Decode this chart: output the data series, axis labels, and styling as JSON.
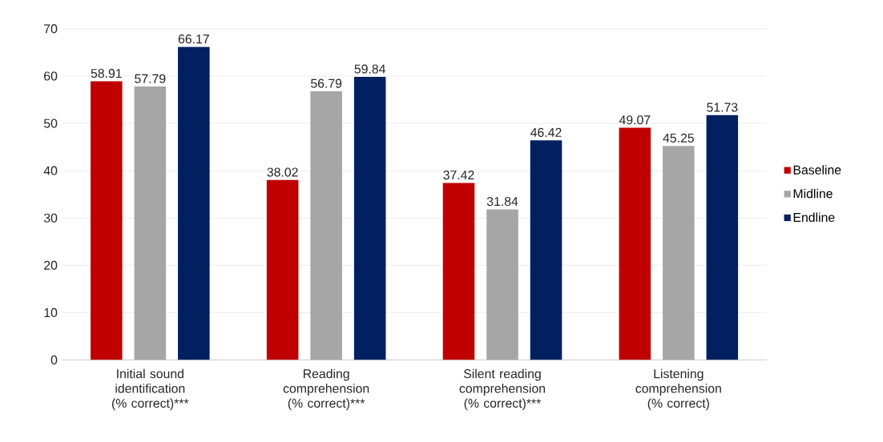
{
  "chart_data": {
    "type": "bar",
    "categories": [
      "Initial sound identification (% correct)***",
      "Reading comprehension (% correct)***",
      "Silent reading comprehension (% correct)***",
      "Listening comprehension (% correct)"
    ],
    "series": [
      {
        "name": "Baseline",
        "color": "#c00000",
        "values": [
          58.91,
          38.02,
          37.42,
          49.07
        ]
      },
      {
        "name": "Midline",
        "color": "#a6a6a6",
        "values": [
          57.79,
          56.79,
          31.84,
          45.25
        ]
      },
      {
        "name": "Endline",
        "color": "#002060",
        "values": [
          66.17,
          59.84,
          46.42,
          51.73
        ]
      }
    ],
    "ylim": [
      0,
      70
    ],
    "yticks": [
      0,
      10,
      20,
      30,
      40,
      50,
      60,
      70
    ],
    "grid": "y",
    "legend": "right",
    "data_labels": true
  }
}
